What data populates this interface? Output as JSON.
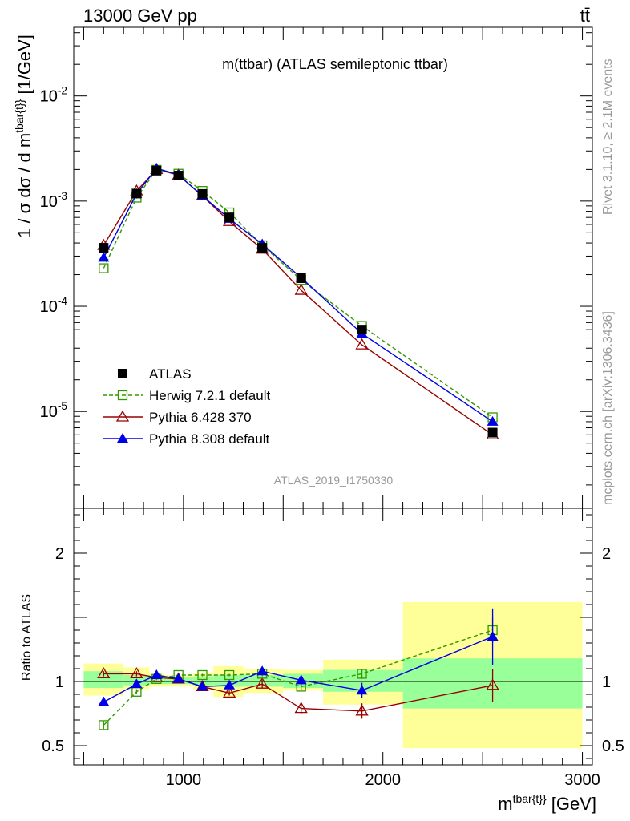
{
  "header": {
    "energy_label": "13000 GeV pp",
    "process_label": "tt̄",
    "rivet_label": "Rivet 3.1.10, ≥ 2.1M events",
    "mcplots_label": "mcplots.cern.ch [arXiv:1306.3436]",
    "analysis_id": "ATLAS_2019_I1750330"
  },
  "colors": {
    "data": "#000000",
    "herwig": "#339900",
    "pythia6": "#990000",
    "pythia8": "#0000e6",
    "band_inner": "#99ff99",
    "band_outer": "#ffff99",
    "watermark": "#999999"
  },
  "chart_data": {
    "type": "line",
    "main": {
      "title": "m(ttbar) (ATLAS semileptonic ttbar)",
      "ylabel": "1 / σ dσ / d m^tbar{t}} [1/GeV]",
      "yscale": "log",
      "ylim": [
        1.2e-06,
        0.045
      ],
      "y_ticks": [
        {
          "value": 1e-05,
          "label": "10^-5"
        },
        {
          "value": 0.0001,
          "label": "10^-4"
        },
        {
          "value": 0.001,
          "label": "10^-3"
        },
        {
          "value": 0.01,
          "label": "10^-2"
        }
      ],
      "series": [
        {
          "name": "ATLAS",
          "key": "data",
          "x": [
            600,
            765,
            865,
            975,
            1095,
            1230,
            1395,
            1590,
            1895,
            2550
          ],
          "y": [
            0.00036,
            0.00118,
            0.00195,
            0.00175,
            0.00117,
            0.0007,
            0.00036,
            0.000185,
            6e-05,
            6.3e-06
          ]
        },
        {
          "name": "Herwig 7.2.1 default",
          "key": "herwig",
          "x": [
            600,
            765,
            865,
            975,
            1095,
            1230,
            1395,
            1590,
            1895,
            2550
          ],
          "y": [
            0.00023,
            0.00108,
            0.00198,
            0.00182,
            0.00125,
            0.00078,
            0.00038,
            0.000178,
            6.5e-05,
            8.8e-06
          ]
        },
        {
          "name": "Pythia 6.428 370",
          "key": "pythia6",
          "x": [
            600,
            765,
            865,
            975,
            1095,
            1230,
            1395,
            1590,
            1895,
            2550
          ],
          "y": [
            0.00038,
            0.00125,
            0.002,
            0.00177,
            0.00112,
            0.00064,
            0.00035,
            0.000142,
            4.3e-05,
            6e-06
          ]
        },
        {
          "name": "Pythia 8.308 default",
          "key": "pythia8",
          "x": [
            600,
            765,
            865,
            975,
            1095,
            1230,
            1395,
            1590,
            1895,
            2550
          ],
          "y": [
            0.00029,
            0.00117,
            0.00205,
            0.00178,
            0.00112,
            0.00068,
            0.00039,
            0.000187,
            5.5e-05,
            8e-06
          ]
        }
      ],
      "legend": [
        "ATLAS",
        "Herwig 7.2.1 default",
        "Pythia 6.428 370",
        "Pythia 8.308 default"
      ],
      "legend_position": "bottom-left"
    },
    "ratio": {
      "ylabel": "Ratio to ATLAS",
      "ylim": [
        0.35,
        2.35
      ],
      "y_ticks": [
        {
          "value": 0.5,
          "label": "0.5"
        },
        {
          "value": 1,
          "label": "1"
        },
        {
          "value": 2,
          "label": "2"
        }
      ],
      "bin_edges": [
        500,
        700,
        830,
        900,
        1050,
        1150,
        1300,
        1500,
        1700,
        2100,
        3000
      ],
      "band_inner": [
        [
          0.95,
          1.08
        ],
        [
          0.97,
          1.05
        ],
        [
          0.98,
          1.03
        ],
        [
          0.98,
          1.03
        ],
        [
          0.97,
          1.04
        ],
        [
          0.96,
          1.05
        ],
        [
          0.96,
          1.05
        ],
        [
          0.95,
          1.06
        ],
        [
          0.92,
          1.09
        ],
        [
          0.79,
          1.18
        ]
      ],
      "band_outer": [
        [
          0.89,
          1.14
        ],
        [
          0.94,
          1.11
        ],
        [
          0.96,
          1.06
        ],
        [
          0.96,
          1.05
        ],
        [
          0.94,
          1.07
        ],
        [
          0.88,
          1.12
        ],
        [
          0.91,
          1.1
        ],
        [
          0.93,
          1.09
        ],
        [
          0.82,
          1.17
        ],
        [
          0.48,
          1.62
        ]
      ],
      "series": [
        {
          "name": "Herwig 7.2.1 default",
          "key": "herwig",
          "x": [
            600,
            765,
            865,
            975,
            1095,
            1230,
            1395,
            1590,
            1895,
            2550
          ],
          "y": [
            0.66,
            0.92,
            1.02,
            1.05,
            1.05,
            1.05,
            1.06,
            0.96,
            1.06,
            1.4
          ],
          "err": [
            0.03,
            0.02,
            0.01,
            0.01,
            0.01,
            0.01,
            0.02,
            0.03,
            0.04,
            0.1
          ]
        },
        {
          "name": "Pythia 6.428 370",
          "key": "pythia6",
          "x": [
            600,
            765,
            865,
            975,
            1095,
            1230,
            1395,
            1590,
            1895,
            2550
          ],
          "y": [
            1.06,
            1.06,
            1.03,
            1.02,
            0.96,
            0.91,
            0.98,
            0.79,
            0.77,
            0.97
          ],
          "err": [
            0.02,
            0.02,
            0.01,
            0.01,
            0.01,
            0.02,
            0.03,
            0.04,
            0.06,
            0.13
          ]
        },
        {
          "name": "Pythia 8.308 default",
          "key": "pythia8",
          "x": [
            600,
            765,
            865,
            975,
            1095,
            1230,
            1395,
            1590,
            1895,
            2550
          ],
          "y": [
            0.84,
            0.98,
            1.05,
            1.02,
            0.96,
            0.97,
            1.08,
            1.01,
            0.93,
            1.35
          ],
          "err": [
            0.03,
            0.02,
            0.01,
            0.01,
            0.01,
            0.02,
            0.03,
            0.04,
            0.06,
            0.22
          ]
        }
      ]
    },
    "x_axis": {
      "label": "m^tbar{t}} [GeV]",
      "xlim": [
        450,
        3050
      ],
      "ticks": [
        {
          "value": 1000,
          "label": "1000"
        },
        {
          "value": 2000,
          "label": "2000"
        },
        {
          "value": 3000,
          "label": "3000"
        }
      ]
    }
  }
}
